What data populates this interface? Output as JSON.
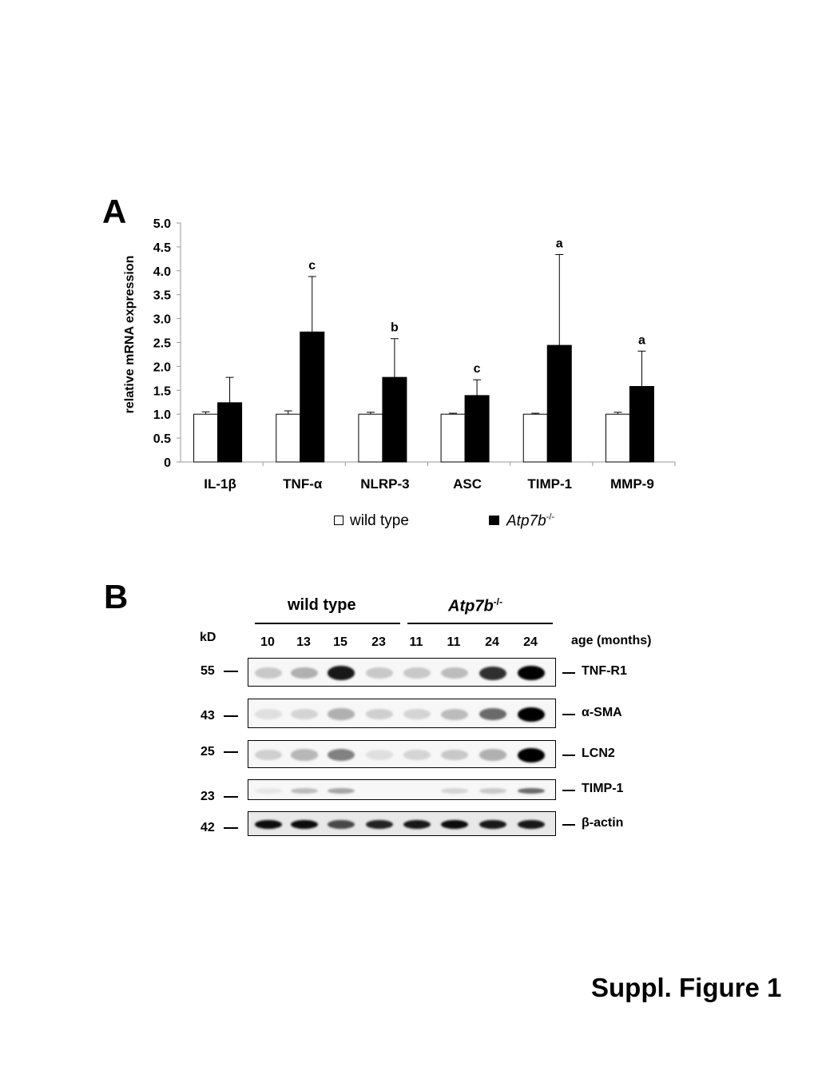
{
  "panel_a": {
    "letter": "A"
  },
  "panel_b": {
    "letter": "B"
  },
  "chart_data": {
    "type": "bar",
    "ylabel": "relative mRNA expression",
    "ylim": [
      0,
      5.0
    ],
    "yticks": [
      "0",
      "0.5",
      "1.0",
      "1.5",
      "2.0",
      "2.5",
      "3.0",
      "3.5",
      "4.0",
      "4.5",
      "5.0"
    ],
    "categories": [
      "IL-1β",
      "TNF-α",
      "NLRP-3",
      "ASC",
      "TIMP-1",
      "MMP-9"
    ],
    "series": [
      {
        "name": "wild type",
        "values": [
          1.0,
          1.0,
          1.0,
          1.0,
          1.0,
          1.0
        ],
        "errors": [
          0.05,
          0.07,
          0.04,
          0.02,
          0.02,
          0.04
        ],
        "color": "#ffffff"
      },
      {
        "name": "Atp7b-/-",
        "values": [
          1.24,
          2.72,
          1.77,
          1.39,
          2.44,
          1.58
        ],
        "errors": [
          0.53,
          1.16,
          0.81,
          0.33,
          1.9,
          0.74
        ],
        "color": "#000000"
      }
    ],
    "significance": [
      "",
      "c",
      "b",
      "c",
      "a",
      "a"
    ],
    "legend": {
      "wild_type": "wild type",
      "knockout_italic": "Atp7b",
      "knockout_sup": "-/-"
    }
  },
  "blot": {
    "group_wt": "wild type",
    "group_ko_italic": "Atp7b",
    "group_ko_sup": "-/-",
    "kd_label": "kD",
    "ages": [
      "10",
      "13",
      "15",
      "23",
      "11",
      "11",
      "24",
      "24"
    ],
    "age_label": "age (months)",
    "rows": [
      {
        "marker": "55",
        "protein": "TNF-R1",
        "intensity": [
          0.15,
          0.25,
          0.9,
          0.15,
          0.15,
          0.2,
          0.8,
          1.0
        ]
      },
      {
        "marker": "43",
        "protein": "α-SMA",
        "intensity": [
          0.05,
          0.1,
          0.25,
          0.12,
          0.1,
          0.2,
          0.55,
          1.0
        ]
      },
      {
        "marker": "25",
        "protein": "LCN2",
        "intensity": [
          0.12,
          0.22,
          0.45,
          0.05,
          0.1,
          0.15,
          0.25,
          1.0
        ]
      },
      {
        "marker": "23",
        "protein": "TIMP-1",
        "intensity": [
          0.02,
          0.2,
          0.3,
          0.0,
          0.0,
          0.1,
          0.15,
          0.55
        ]
      },
      {
        "marker": "42",
        "protein": "β-actin",
        "intensity": [
          0.95,
          0.95,
          0.7,
          0.85,
          0.9,
          0.95,
          0.9,
          0.9
        ]
      }
    ]
  },
  "footer": {
    "title": "Suppl. Figure 1"
  }
}
